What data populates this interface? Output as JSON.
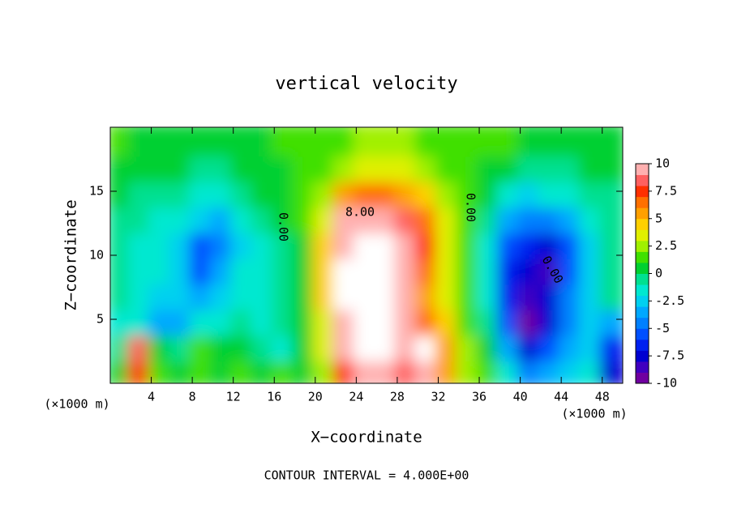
{
  "chart_data": {
    "type": "contour",
    "title": "vertical velocity",
    "x_label": "X−coordinate",
    "y_label": "Z−coordinate",
    "x_unit": "(×1000 m)",
    "y_unit": "(×1000 m)",
    "footer": "CONTOUR INTERVAL = 4.000E+00",
    "contour_labels": [
      "8.00",
      "0.00",
      "0.00",
      "0.00"
    ],
    "xlim": [
      0,
      50
    ],
    "ylim": [
      0,
      20
    ],
    "xticks": [
      4,
      8,
      12,
      16,
      20,
      24,
      28,
      32,
      36,
      40,
      44,
      48
    ],
    "yticks": [
      5,
      10,
      15
    ],
    "x": [
      1,
      3,
      5,
      7,
      9,
      11,
      13,
      15,
      17,
      19,
      21,
      23,
      25,
      27,
      29,
      31,
      33,
      35,
      37,
      39,
      41,
      43,
      45,
      47,
      49
    ],
    "z": [
      1,
      3,
      5,
      7,
      9,
      11,
      13,
      15,
      17,
      19
    ],
    "values": [
      [
        0,
        7,
        1,
        0,
        1,
        0.5,
        1,
        0,
        1,
        0.5,
        2,
        7,
        10,
        9,
        8,
        10,
        5,
        2,
        1,
        -2,
        -5,
        -4,
        -3,
        -2,
        -8
      ],
      [
        -1,
        8,
        0,
        -1,
        1,
        0,
        0,
        -1,
        -2,
        0,
        3,
        9,
        12,
        11,
        10,
        12,
        5,
        2,
        0,
        -4,
        -8,
        -6,
        -4,
        -3,
        -7
      ],
      [
        -2,
        -2,
        -4,
        -4,
        -2,
        -2,
        -1,
        -2,
        -1,
        0,
        3,
        10,
        12,
        12,
        10,
        6,
        4,
        1,
        -1,
        -6,
        -10,
        -8,
        -5,
        -3,
        -4
      ],
      [
        -1,
        -2,
        -3,
        -3,
        -4,
        -3,
        -2,
        -2,
        -1,
        0,
        4,
        11,
        12,
        12,
        9,
        5,
        3,
        1,
        -2,
        -7,
        -9,
        -8,
        -5,
        -3,
        -1
      ],
      [
        -1,
        -2,
        -2,
        -3,
        -6,
        -4,
        -2,
        -2,
        -1,
        0,
        4,
        11,
        12,
        12,
        9,
        6,
        3,
        1,
        -2,
        -7,
        -8,
        -9,
        -6,
        -3,
        -1
      ],
      [
        -1,
        -2,
        -2,
        -3,
        -6,
        -5,
        -3,
        -2,
        -1,
        0,
        4,
        10,
        12,
        11,
        9,
        7,
        3,
        1,
        -2,
        -6,
        -7,
        -8,
        -6,
        -3,
        -1
      ],
      [
        -1,
        -1,
        -2,
        -2,
        -3,
        -4,
        -2,
        -1,
        0,
        1,
        3,
        9,
        10,
        9,
        8,
        6,
        3,
        1,
        -1,
        -4,
        -5,
        -5,
        -4,
        -2,
        -1
      ],
      [
        0,
        -1,
        -1,
        -1,
        -2,
        -2,
        -1,
        0,
        0,
        1,
        2,
        5,
        6,
        6,
        5,
        4,
        2,
        1,
        0,
        -2,
        -3,
        -2,
        -2,
        -1,
        -1
      ],
      [
        0,
        0,
        0,
        0,
        -1,
        -1,
        0,
        0,
        0,
        1,
        1,
        2,
        3,
        3,
        3,
        2,
        1,
        1,
        0,
        0,
        -1,
        -1,
        -1,
        0,
        0
      ],
      [
        1,
        0,
        0,
        0,
        0,
        0,
        0,
        0,
        1,
        1,
        1,
        1,
        2,
        2,
        2,
        1,
        1,
        1,
        1,
        1,
        0,
        0,
        0,
        0,
        0
      ]
    ],
    "clim": [
      -10,
      10
    ],
    "cticks": [
      10,
      7.5,
      5,
      2.5,
      0,
      -2.5,
      -5,
      -7.5,
      -10
    ],
    "colors": [
      "#7000a0",
      "#4000c0",
      "#0000d0",
      "#0020f0",
      "#0050ff",
      "#0080ff",
      "#00a8ff",
      "#00d0f0",
      "#00e8d0",
      "#00e090",
      "#00d030",
      "#40e000",
      "#a0f000",
      "#e0f000",
      "#ffd000",
      "#ffa000",
      "#ff7000",
      "#ff3000",
      "#ff6060",
      "#ffb0b0"
    ],
    "over_color": "#ffffff"
  }
}
